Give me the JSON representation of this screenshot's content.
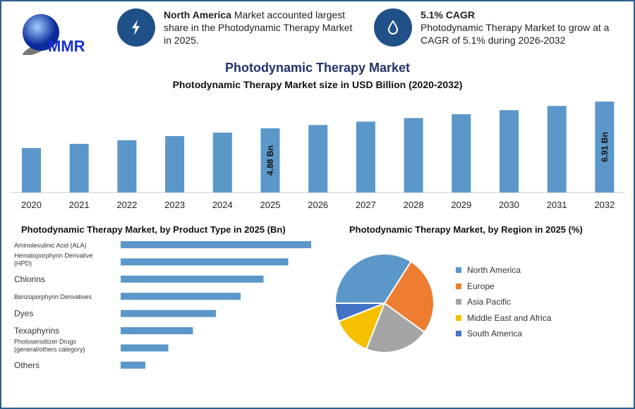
{
  "logo": {
    "text": "MMR"
  },
  "highlights": [
    {
      "icon": "lightning-icon",
      "bold": "North America",
      "text": " Market accounted largest share in the Photodynamic Therapy Market in 2025."
    },
    {
      "icon": "growth-icon",
      "bold": "5.1% CAGR",
      "text": "Photodynamic Therapy Market to grow at a CAGR of 5.1% during 2026-2032"
    }
  ],
  "title": "Photodynamic Therapy Market",
  "colors": {
    "bar": "#5b97c9",
    "accent": "#1f5188",
    "title": "#23336b"
  },
  "chart_data": [
    {
      "type": "bar",
      "title": "Photodynamic Therapy Market size in USD Billion (2020-2032)",
      "categories": [
        "2020",
        "2021",
        "2022",
        "2023",
        "2024",
        "2025",
        "2026",
        "2027",
        "2028",
        "2029",
        "2030",
        "2031",
        "2032"
      ],
      "values": [
        3.38,
        3.7,
        3.97,
        4.29,
        4.55,
        4.88,
        5.13,
        5.39,
        5.66,
        5.95,
        6.26,
        6.58,
        6.91
      ],
      "data_labels": {
        "2025": "4.88 Bn",
        "2032": "6.91 Bn"
      },
      "ylim": [
        0,
        7.5
      ],
      "grid": false
    },
    {
      "type": "bar",
      "orientation": "horizontal",
      "title": "Photodynamic Therapy Market, by Product Type in 2025 (Bn)",
      "categories": [
        "Aminolevulinic Acid (ALA)",
        "Hematoporphyrin Derivative (HPD)",
        "Chlorins",
        "Benzoporphyrin Derivatives",
        "Dyes",
        "Texaphyrins",
        "Photosensitizer Drugs (general/others category)",
        "Others"
      ],
      "values": [
        1.08,
        0.95,
        0.81,
        0.68,
        0.54,
        0.41,
        0.27,
        0.14
      ],
      "grid": false
    },
    {
      "type": "pie",
      "title": "Photodynamic Therapy Market, by Region in 2025 (%)",
      "labels": [
        "North America",
        "Europe",
        "Asia Pacific",
        "Middle East and Africa",
        "South America"
      ],
      "values": [
        34,
        26,
        21,
        13,
        6
      ],
      "colors": [
        "#5b97c9",
        "#ed7d31",
        "#a5a5a5",
        "#f4c000",
        "#4472c4"
      ],
      "legend": "right"
    }
  ]
}
